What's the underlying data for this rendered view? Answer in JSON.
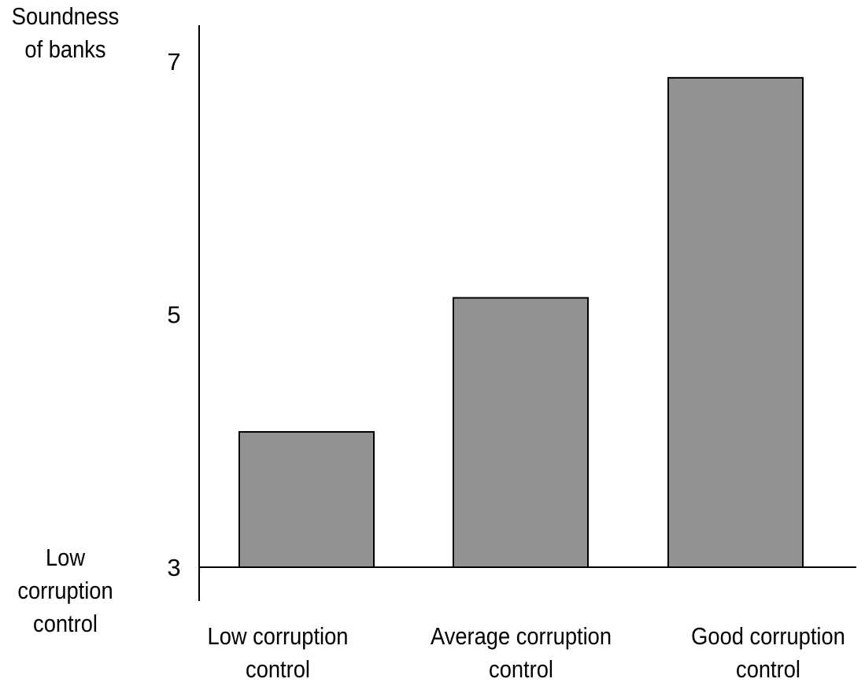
{
  "chart_data": {
    "type": "bar",
    "categories": [
      "Low corruption control",
      "Average corruption control",
      "Good corruption control"
    ],
    "category_labels": [
      [
        "Low corruption",
        "control"
      ],
      [
        "Average corruption",
        "control"
      ],
      [
        "Good corruption",
        "control"
      ]
    ],
    "values": [
      4.07,
      5.13,
      6.87
    ],
    "ylabel_lines": [
      "Soundness",
      "of banks"
    ],
    "low_label_lines": [
      "Low",
      "corruption",
      "control"
    ],
    "yticks": [
      {
        "value": 3,
        "label": "3"
      },
      {
        "value": 5,
        "label": "5"
      },
      {
        "value": 7,
        "label": "7"
      }
    ],
    "ylim": [
      3,
      7
    ],
    "grid": false,
    "colors": {
      "bar_fill": "#929292",
      "bar_stroke": "#000000",
      "axis": "#000000",
      "background": "#ffffff"
    }
  }
}
